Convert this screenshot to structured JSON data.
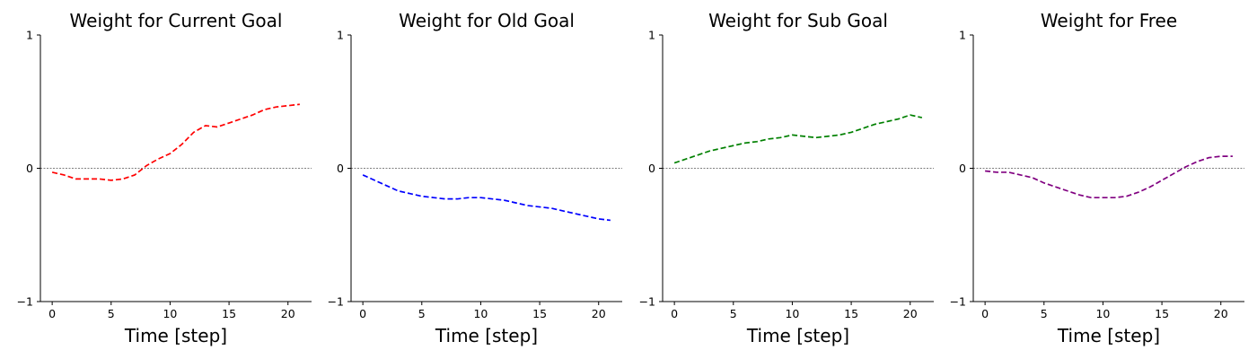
{
  "chart_data": [
    {
      "type": "line",
      "title": "Weight for Current Goal",
      "xlabel": "Time [step]",
      "ylabel": "",
      "xlim": [
        -1,
        22
      ],
      "ylim": [
        -1,
        1
      ],
      "xticks": [
        0,
        5,
        10,
        15,
        20
      ],
      "yticks": [
        -1,
        0,
        1
      ],
      "zero_line": true,
      "series": [
        {
          "color": "#ff0000",
          "linestyle": "dashed",
          "x": [
            0,
            1,
            2,
            3,
            4,
            5,
            6,
            7,
            8,
            9,
            10,
            11,
            12,
            13,
            14,
            15,
            16,
            17,
            18,
            19,
            20,
            21
          ],
          "y": [
            -0.03,
            -0.05,
            -0.08,
            -0.08,
            -0.08,
            -0.09,
            -0.08,
            -0.05,
            0.02,
            0.07,
            0.11,
            0.18,
            0.27,
            0.32,
            0.31,
            0.34,
            0.37,
            0.4,
            0.44,
            0.46,
            0.47,
            0.48
          ]
        }
      ]
    },
    {
      "type": "line",
      "title": "Weight for Old Goal",
      "xlabel": "Time [step]",
      "ylabel": "",
      "xlim": [
        -1,
        22
      ],
      "ylim": [
        -1,
        1
      ],
      "xticks": [
        0,
        5,
        10,
        15,
        20
      ],
      "yticks": [
        -1,
        0,
        1
      ],
      "zero_line": true,
      "series": [
        {
          "color": "#0000ff",
          "linestyle": "dashed",
          "x": [
            0,
            1,
            2,
            3,
            4,
            5,
            6,
            7,
            8,
            9,
            10,
            11,
            12,
            13,
            14,
            15,
            16,
            17,
            18,
            19,
            20,
            21
          ],
          "y": [
            -0.05,
            -0.09,
            -0.13,
            -0.17,
            -0.19,
            -0.21,
            -0.22,
            -0.23,
            -0.23,
            -0.22,
            -0.22,
            -0.23,
            -0.24,
            -0.26,
            -0.28,
            -0.29,
            -0.3,
            -0.32,
            -0.34,
            -0.36,
            -0.38,
            -0.39
          ]
        }
      ]
    },
    {
      "type": "line",
      "title": "Weight for Sub Goal",
      "xlabel": "Time [step]",
      "ylabel": "",
      "xlim": [
        -1,
        22
      ],
      "ylim": [
        -1,
        1
      ],
      "xticks": [
        0,
        5,
        10,
        15,
        20
      ],
      "yticks": [
        -1,
        0,
        1
      ],
      "zero_line": true,
      "series": [
        {
          "color": "#008000",
          "linestyle": "dashed",
          "x": [
            0,
            1,
            2,
            3,
            4,
            5,
            6,
            7,
            8,
            9,
            10,
            11,
            12,
            13,
            14,
            15,
            16,
            17,
            18,
            19,
            20,
            21
          ],
          "y": [
            0.04,
            0.07,
            0.1,
            0.13,
            0.15,
            0.17,
            0.19,
            0.2,
            0.22,
            0.23,
            0.25,
            0.24,
            0.23,
            0.24,
            0.25,
            0.27,
            0.3,
            0.33,
            0.35,
            0.37,
            0.4,
            0.38
          ]
        }
      ]
    },
    {
      "type": "line",
      "title": "Weight for Free",
      "xlabel": "Time [step]",
      "ylabel": "",
      "xlim": [
        -1,
        22
      ],
      "ylim": [
        -1,
        1
      ],
      "xticks": [
        0,
        5,
        10,
        15,
        20
      ],
      "yticks": [
        -1,
        0,
        1
      ],
      "zero_line": true,
      "series": [
        {
          "color": "#800080",
          "linestyle": "dashed",
          "x": [
            0,
            1,
            2,
            3,
            4,
            5,
            6,
            7,
            8,
            9,
            10,
            11,
            12,
            13,
            14,
            15,
            16,
            17,
            18,
            19,
            20,
            21
          ],
          "y": [
            -0.02,
            -0.03,
            -0.03,
            -0.05,
            -0.07,
            -0.11,
            -0.14,
            -0.17,
            -0.2,
            -0.22,
            -0.22,
            -0.22,
            -0.21,
            -0.18,
            -0.14,
            -0.09,
            -0.04,
            0.01,
            0.05,
            0.08,
            0.09,
            0.09
          ]
        }
      ]
    }
  ]
}
